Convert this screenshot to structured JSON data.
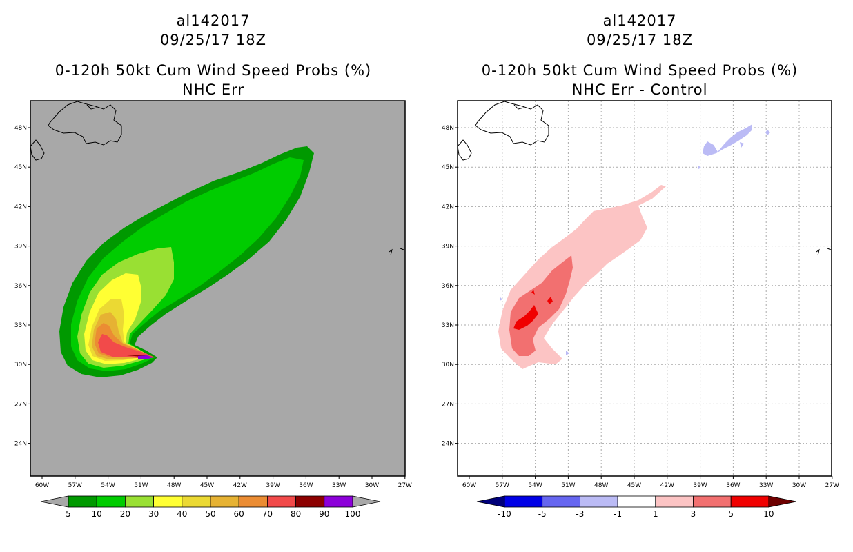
{
  "left_panel": {
    "title_storm": "al142017",
    "title_time": "09/25/17 18Z",
    "title_product": "0-120h 50kt Cum Wind Speed Probs (%)",
    "title_sub": "NHC Err",
    "colorbar_labels": [
      "5",
      "10",
      "20",
      "30",
      "40",
      "50",
      "60",
      "70",
      "80",
      "90",
      "100"
    ],
    "colorbar_colors": [
      "#009900",
      "#00cc00",
      "#99e033",
      "#ffff33",
      "#ebd933",
      "#e6b233",
      "#eb8c33",
      "#f24a4a",
      "#8c0000",
      "#8c00d9"
    ],
    "background_color": "#a8a8a8"
  },
  "right_panel": {
    "title_storm": "al142017",
    "title_time": "09/25/17 18Z",
    "title_product": "0-120h 50kt Cum Wind Speed Probs (%)",
    "title_sub": "NHC Err - Control",
    "colorbar_labels": [
      "-10",
      "-5",
      "-3",
      "-1",
      "1",
      "3",
      "5",
      "10"
    ],
    "colorbar_colors": [
      "#0000e6",
      "#6666f0",
      "#bbbbf5",
      "#ffffff",
      "#fcc4c4",
      "#f27070",
      "#f00000"
    ],
    "background_color": "#ffffff"
  },
  "axes": {
    "lon_labels": [
      "60W",
      "57W",
      "54W",
      "51W",
      "48W",
      "45W",
      "42W",
      "39W",
      "36W",
      "33W",
      "30W",
      "27W"
    ],
    "lat_labels": [
      "48N",
      "45N",
      "42N",
      "39N",
      "36N",
      "33N",
      "30N",
      "27N",
      "24N"
    ]
  }
}
